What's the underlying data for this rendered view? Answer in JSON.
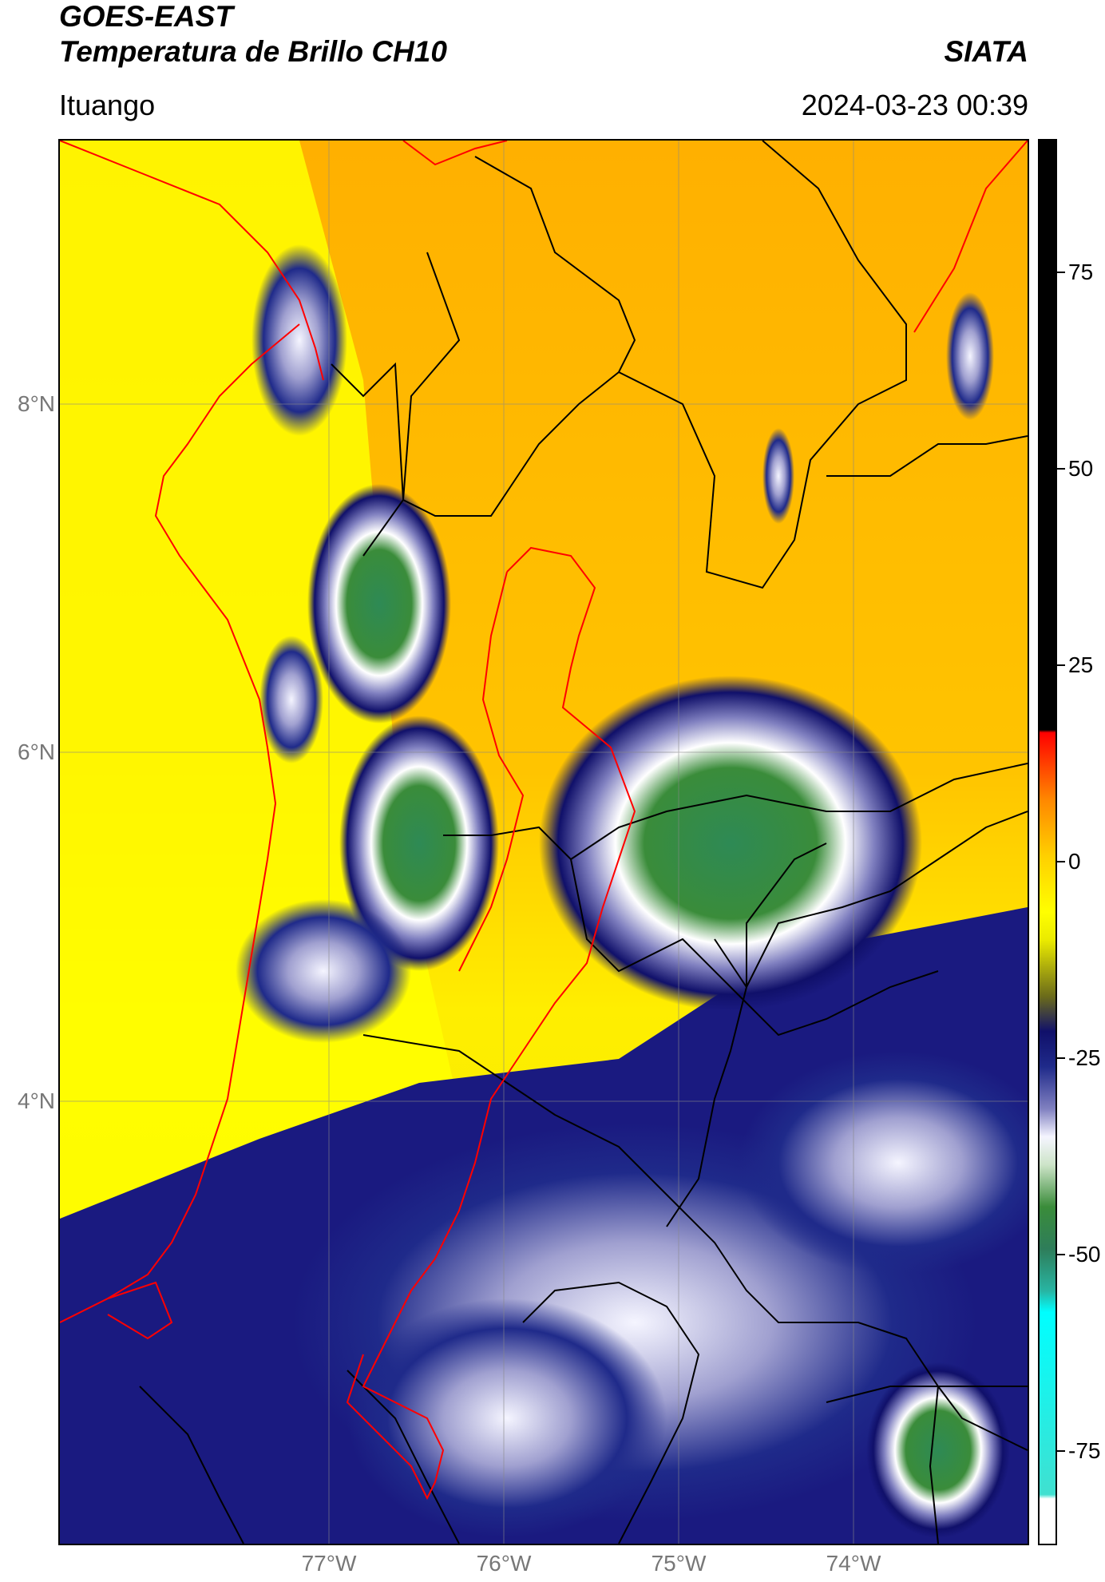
{
  "header": {
    "line1": "GOES-EAST",
    "line2": "Temperatura de Brillo CH10",
    "brand": "SIATA",
    "location": "Ituango",
    "datetime": "2024-03-23 00:39"
  },
  "axes": {
    "lat_labels": [
      "8°N",
      "6°N",
      "4°N"
    ],
    "lon_labels": [
      "77°W",
      "76°W",
      "75°W",
      "74°W"
    ]
  },
  "colorbar": {
    "ticks": [
      "75",
      "50",
      "25",
      "0",
      "-25",
      "-50",
      "-75"
    ],
    "tick_values": [
      75,
      50,
      25,
      0,
      -25,
      -50,
      -75
    ],
    "range": [
      -87,
      92
    ]
  },
  "colors": {
    "warm": "#ffaa00",
    "mid": "#ffff00",
    "cold": "#10106a",
    "coldest": "#2e7d5a",
    "dept_border": "#ff0000",
    "muni_border": "#000000"
  }
}
